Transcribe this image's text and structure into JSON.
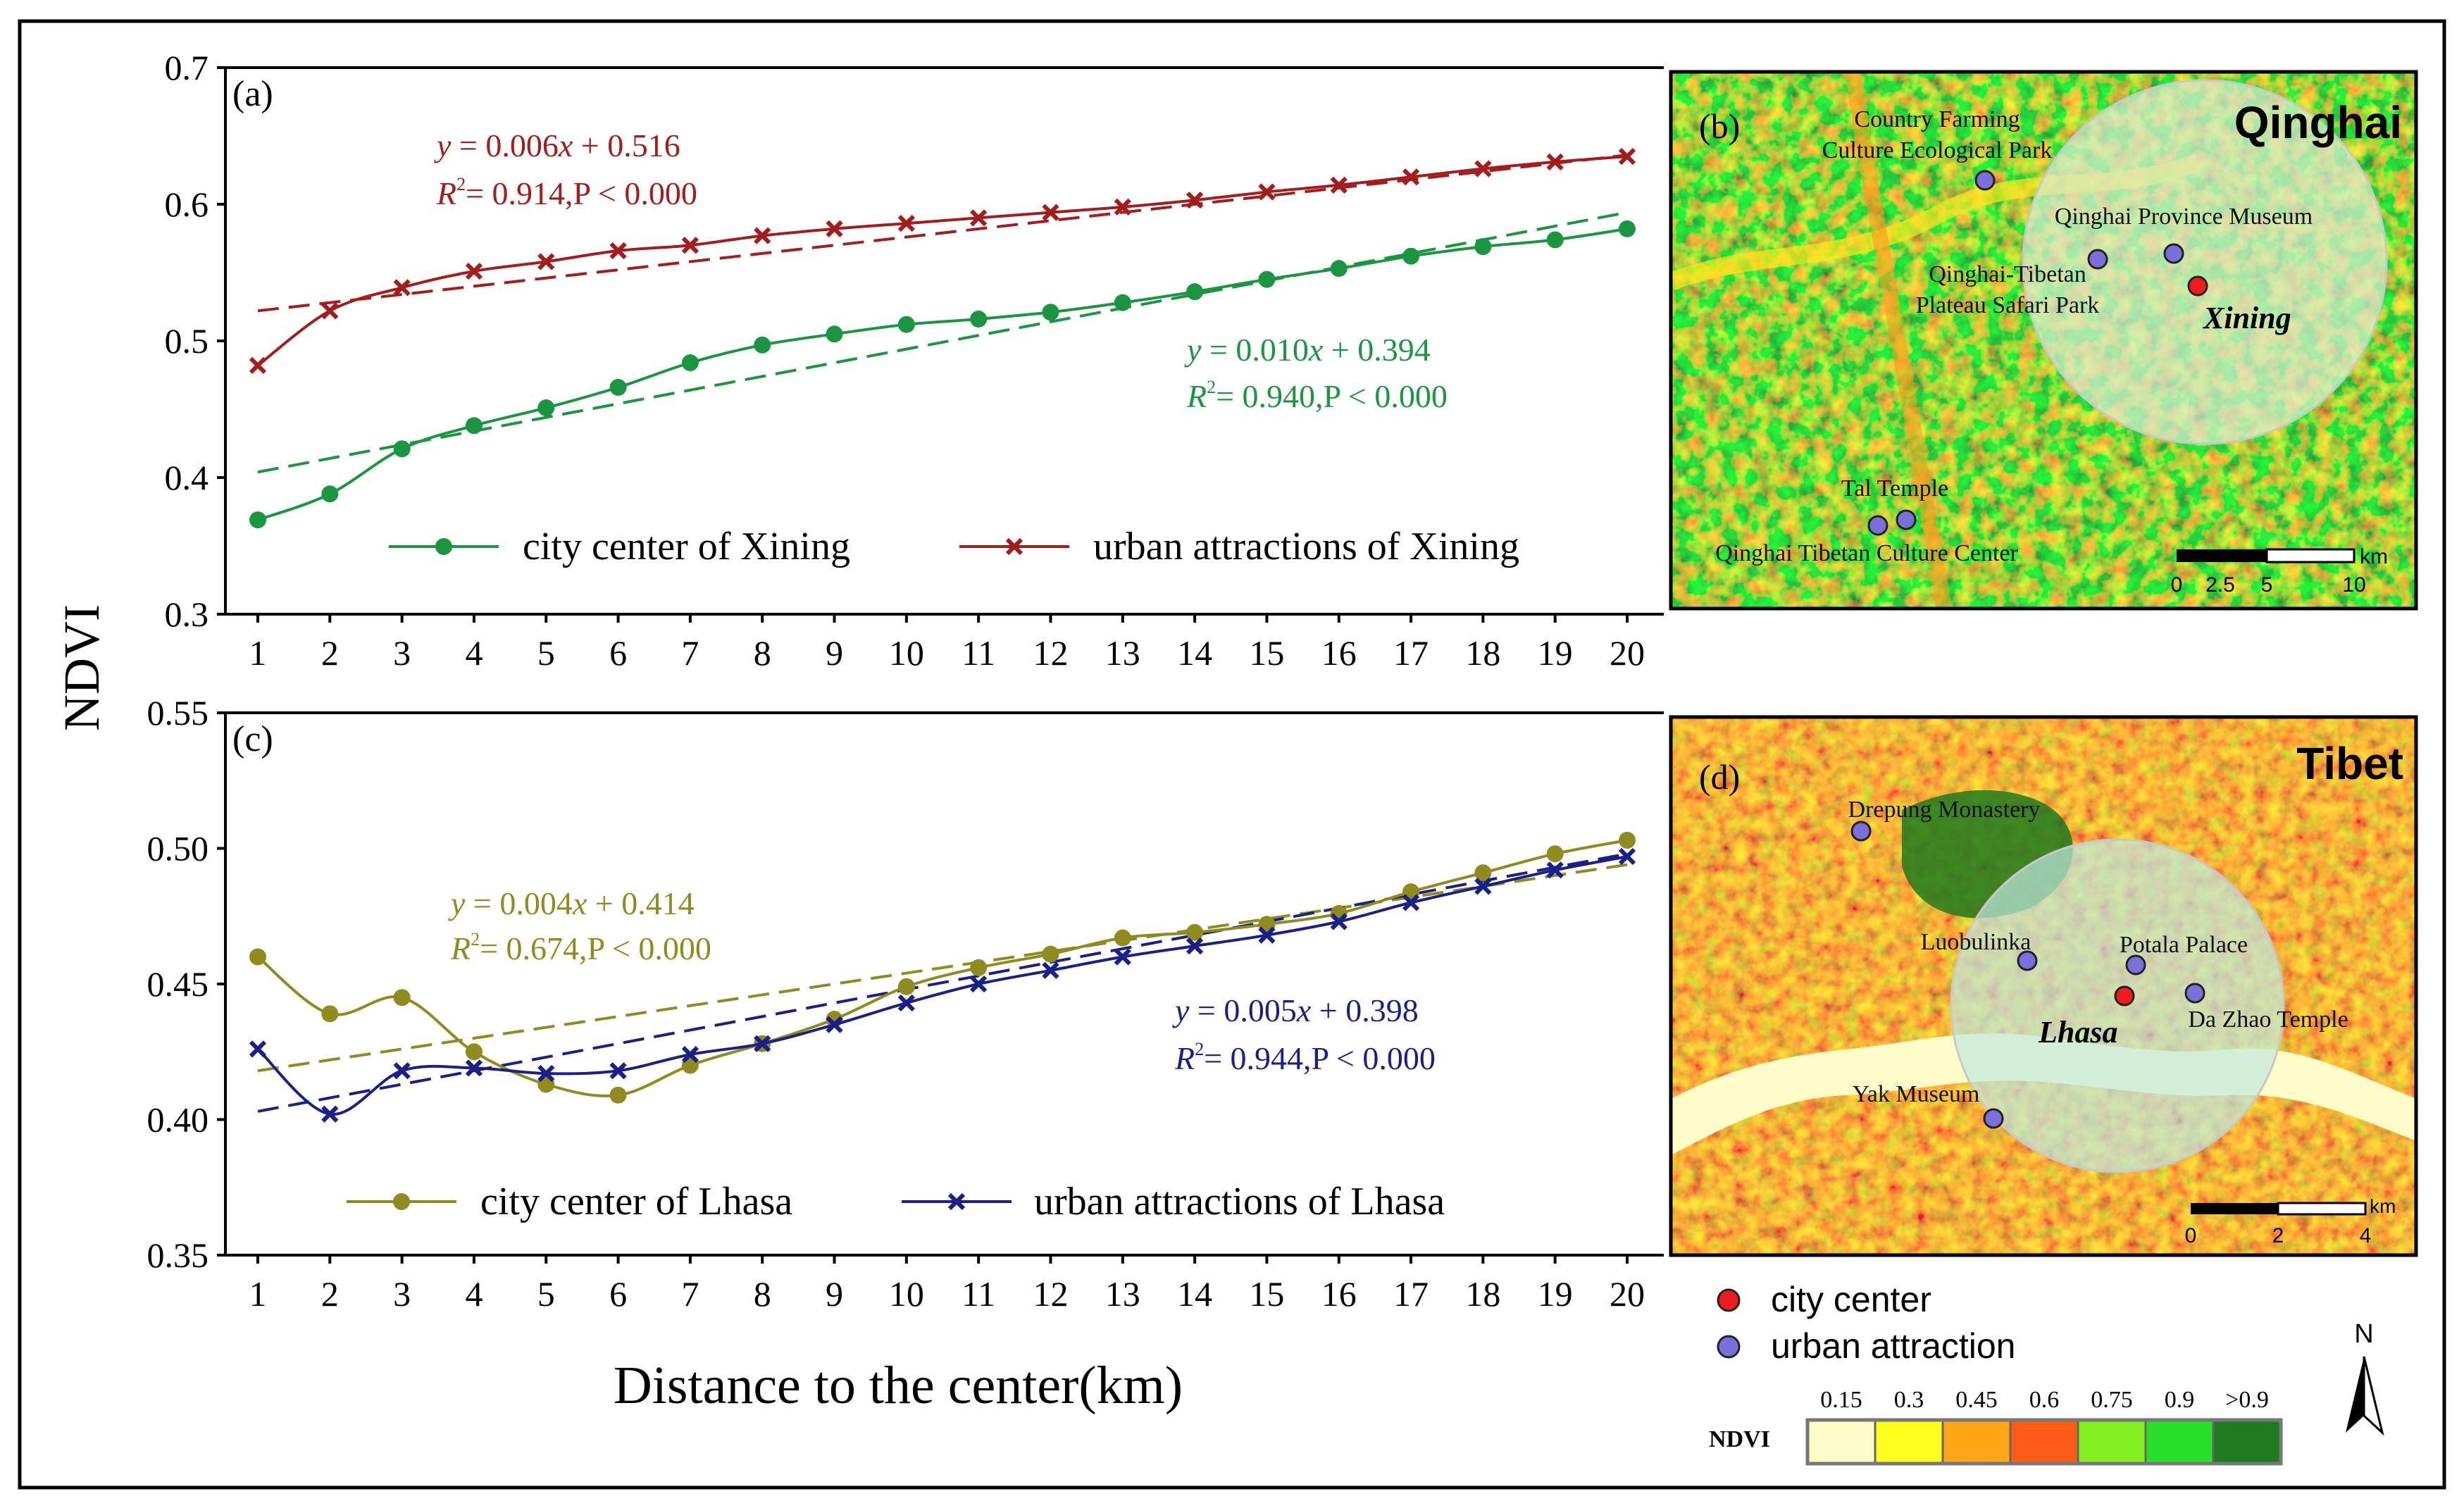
{
  "figure": {
    "y_axis_label": "NDVI",
    "x_axis_label": "Distance to the center(km)"
  },
  "chart_data": [
    {
      "panel": "(a)",
      "type": "line",
      "categories": [
        1,
        2,
        3,
        4,
        5,
        6,
        7,
        8,
        9,
        10,
        11,
        12,
        13,
        14,
        15,
        16,
        17,
        18,
        19,
        20
      ],
      "ylim": [
        0.3,
        0.7
      ],
      "yticks": [
        "0.3",
        "0.4",
        "0.5",
        "0.6",
        "0.7"
      ],
      "series": [
        {
          "name": "city center of Xining",
          "color": "#1a9641",
          "marker": "circle",
          "values": [
            0.369,
            0.388,
            0.421,
            0.438,
            0.451,
            0.466,
            0.484,
            0.497,
            0.505,
            0.512,
            0.516,
            0.521,
            0.528,
            0.536,
            0.545,
            0.553,
            0.562,
            0.569,
            0.574,
            0.582
          ]
        },
        {
          "name": "urban attractions of Xining",
          "color": "#a51c1c",
          "marker": "x",
          "values": [
            0.482,
            0.522,
            0.539,
            0.551,
            0.558,
            0.566,
            0.57,
            0.577,
            0.582,
            0.586,
            0.59,
            0.594,
            0.598,
            0.603,
            0.609,
            0.614,
            0.62,
            0.626,
            0.631,
            0.635
          ]
        }
      ],
      "fits": [
        {
          "series": "city center of Xining",
          "slope": 0.01,
          "intercept": 0.394,
          "eq_y": "y",
          "eq_eq": " = 0.010",
          "eq_x": "x",
          "eq_rest": " + 0.394",
          "r2_R": "R",
          "r2_sup": "2",
          "r2_rest": "= 0.940,P < 0.000"
        },
        {
          "series": "urban attractions of Xining",
          "slope": 0.006,
          "intercept": 0.516,
          "eq_y": "y",
          "eq_eq": " = 0.006",
          "eq_x": "x",
          "eq_rest": " + 0.516",
          "r2_R": "R",
          "r2_sup": "2",
          "r2_rest": "= 0.914,P < 0.000"
        }
      ]
    },
    {
      "panel": "(c)",
      "type": "line",
      "categories": [
        1,
        2,
        3,
        4,
        5,
        6,
        7,
        8,
        9,
        10,
        11,
        12,
        13,
        14,
        15,
        16,
        17,
        18,
        19,
        20
      ],
      "ylim": [
        0.35,
        0.55
      ],
      "yticks": [
        "0.35",
        "0.40",
        "0.45",
        "0.50",
        "0.55"
      ],
      "series": [
        {
          "name": "city center of Lhasa",
          "color": "#8f8b1e",
          "marker": "circle",
          "values": [
            0.46,
            0.439,
            0.445,
            0.425,
            0.413,
            0.409,
            0.42,
            0.428,
            0.437,
            0.449,
            0.456,
            0.461,
            0.467,
            0.469,
            0.472,
            0.476,
            0.484,
            0.491,
            0.498,
            0.503
          ]
        },
        {
          "name": "urban attractions of Lhasa",
          "color": "#1b1f8c",
          "marker": "x",
          "values": [
            0.426,
            0.402,
            0.418,
            0.419,
            0.417,
            0.418,
            0.424,
            0.428,
            0.435,
            0.443,
            0.45,
            0.455,
            0.46,
            0.464,
            0.468,
            0.473,
            0.48,
            0.486,
            0.492,
            0.497
          ]
        }
      ],
      "fits": [
        {
          "series": "city center of Lhasa",
          "slope": 0.004,
          "intercept": 0.414,
          "eq_y": "y",
          "eq_eq": " = 0.004",
          "eq_x": "x",
          "eq_rest": " + 0.414",
          "r2_R": "R",
          "r2_sup": "2",
          "r2_rest": "= 0.674,P < 0.000"
        },
        {
          "series": "urban attractions of Lhasa",
          "slope": 0.005,
          "intercept": 0.398,
          "eq_y": "y",
          "eq_eq": " = 0.005",
          "eq_x": "x",
          "eq_rest": " + 0.398",
          "r2_R": "R",
          "r2_sup": "2",
          "r2_rest": "= 0.944,P < 0.000"
        }
      ]
    }
  ],
  "maps": {
    "b": {
      "panel": "(b)",
      "region": "Qinghai",
      "city": "Xining",
      "labels": [
        "Country Farming",
        "Culture Ecological Park",
        "Qinghai Province Museum",
        "Qinghai-Tibetan",
        "Plateau Safari Park",
        "Tal Temple",
        "Qinghai Tibetan Culture Center"
      ],
      "scale_unit": "km",
      "scale_ticks": [
        "0",
        "2.5",
        "5",
        "10"
      ]
    },
    "d": {
      "panel": "(d)",
      "region": "Tibet",
      "city": "Lhasa",
      "labels": [
        "Drepung Monastery",
        "Luobulinka",
        "Potala Palace",
        "Da Zhao Temple",
        "Yak Museum"
      ],
      "scale_unit": "km",
      "scale_ticks": [
        "0",
        "2",
        "4"
      ]
    }
  },
  "map_legend": {
    "city_center": "city center",
    "urban_attraction": "urban attraction",
    "north": "N",
    "ndvi_title": "NDVI",
    "ndvi_breaks": [
      "0.15",
      "0.3",
      "0.45",
      "0.6",
      "0.75",
      "0.9",
      ">0.9"
    ],
    "ndvi_colors": [
      "#fdfbc8",
      "#ffff1e",
      "#ffa516",
      "#ff5a16",
      "#82f01e",
      "#28e028",
      "#1e7a1e"
    ],
    "city_center_color": "#ee1c1c",
    "urban_attraction_color": "#7b6fdc"
  }
}
